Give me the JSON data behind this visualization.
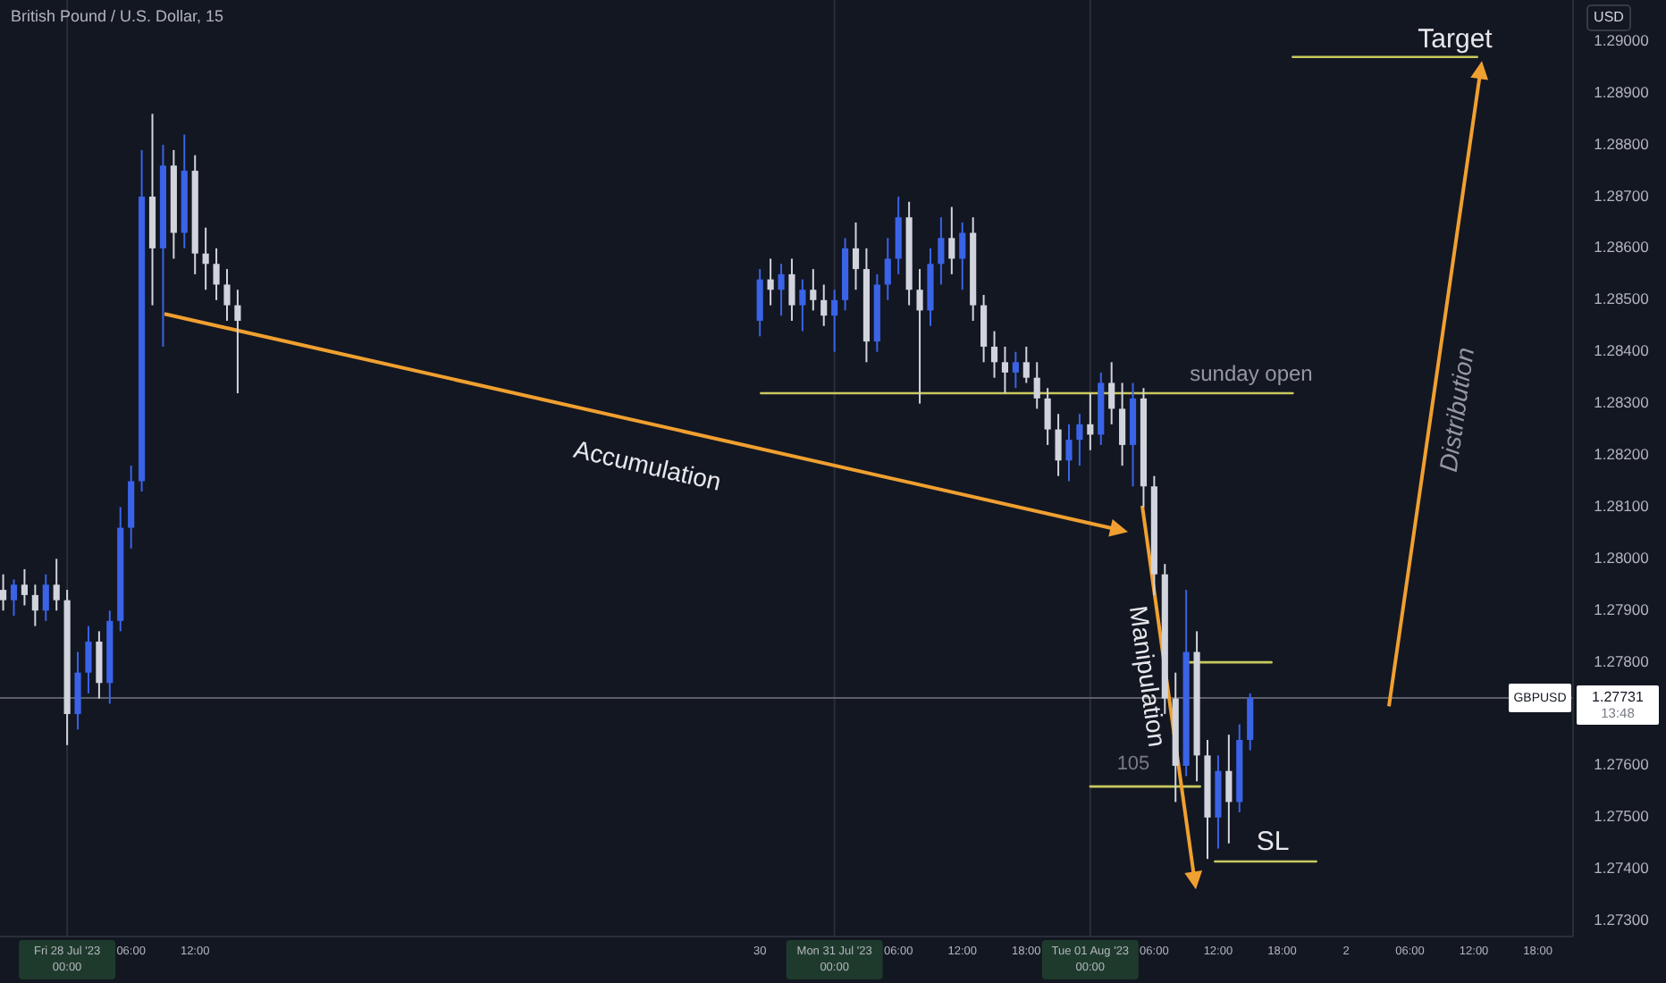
{
  "chart_data": {
    "type": "candlestick",
    "title": "British Pound / U.S. Dollar, 15",
    "x": [
      "2023-07-27T18:00",
      "2023-07-27T19:00",
      "2023-07-27T20:00",
      "2023-07-27T21:00",
      "2023-07-27T22:00",
      "2023-07-27T23:00",
      "2023-07-28T00:00",
      "2023-07-28T01:00",
      "2023-07-28T02:00",
      "2023-07-28T03:00",
      "2023-07-28T04:00",
      "2023-07-28T05:00",
      "2023-07-28T06:00",
      "2023-07-28T07:00",
      "2023-07-28T08:00",
      "2023-07-28T09:00",
      "2023-07-28T10:00",
      "2023-07-28T11:00",
      "2023-07-28T12:00",
      "2023-07-28T13:00",
      "2023-07-28T14:00",
      "2023-07-28T15:00",
      "2023-07-28T16:00",
      "2023-07-30T17:00",
      "2023-07-30T18:00",
      "2023-07-30T19:00",
      "2023-07-30T20:00",
      "2023-07-30T21:00",
      "2023-07-30T22:00",
      "2023-07-30T23:00",
      "2023-07-31T00:00",
      "2023-07-31T01:00",
      "2023-07-31T02:00",
      "2023-07-31T03:00",
      "2023-07-31T04:00",
      "2023-07-31T05:00",
      "2023-07-31T06:00",
      "2023-07-31T07:00",
      "2023-07-31T08:00",
      "2023-07-31T09:00",
      "2023-07-31T10:00",
      "2023-07-31T11:00",
      "2023-07-31T12:00",
      "2023-07-31T13:00",
      "2023-07-31T14:00",
      "2023-07-31T15:00",
      "2023-07-31T16:00",
      "2023-07-31T17:00",
      "2023-07-31T18:00",
      "2023-07-31T19:00",
      "2023-07-31T20:00",
      "2023-07-31T21:00",
      "2023-07-31T22:00",
      "2023-07-31T23:00",
      "2023-08-01T00:00",
      "2023-08-01T01:00",
      "2023-08-01T02:00",
      "2023-08-01T03:00",
      "2023-08-01T04:00",
      "2023-08-01T05:00",
      "2023-08-01T06:00",
      "2023-08-01T07:00",
      "2023-08-01T08:00",
      "2023-08-01T09:00",
      "2023-08-01T10:00",
      "2023-08-01T11:00",
      "2023-08-01T12:00",
      "2023-08-01T13:00",
      "2023-08-01T14:00",
      "2023-08-01T15:00"
    ],
    "ohlc": [
      [
        1.2794,
        1.2797,
        1.279,
        1.2792
      ],
      [
        1.2792,
        1.2796,
        1.2789,
        1.2795
      ],
      [
        1.2795,
        1.2798,
        1.2791,
        1.2793
      ],
      [
        1.2793,
        1.2795,
        1.2787,
        1.279
      ],
      [
        1.279,
        1.2797,
        1.2788,
        1.2795
      ],
      [
        1.2795,
        1.28,
        1.279,
        1.2792
      ],
      [
        1.2792,
        1.2794,
        1.2764,
        1.277
      ],
      [
        1.277,
        1.2782,
        1.2767,
        1.2778
      ],
      [
        1.2778,
        1.2787,
        1.2774,
        1.2784
      ],
      [
        1.2784,
        1.2786,
        1.2773,
        1.2776
      ],
      [
        1.2776,
        1.279,
        1.2772,
        1.2788
      ],
      [
        1.2788,
        1.281,
        1.2786,
        1.2806
      ],
      [
        1.2806,
        1.2818,
        1.2802,
        1.2815
      ],
      [
        1.2815,
        1.2879,
        1.2813,
        1.287
      ],
      [
        1.287,
        1.2886,
        1.2849,
        1.286
      ],
      [
        1.286,
        1.288,
        1.2841,
        1.2876
      ],
      [
        1.2876,
        1.2879,
        1.2858,
        1.2863
      ],
      [
        1.2863,
        1.2882,
        1.286,
        1.2875
      ],
      [
        1.2875,
        1.2878,
        1.2855,
        1.2859
      ],
      [
        1.2859,
        1.2864,
        1.2852,
        1.2857
      ],
      [
        1.2857,
        1.286,
        1.285,
        1.2853
      ],
      [
        1.2853,
        1.2856,
        1.2846,
        1.2849
      ],
      [
        1.2849,
        1.2852,
        1.2832,
        1.2846
      ],
      [
        1.2846,
        1.2856,
        1.2843,
        1.2854
      ],
      [
        1.2854,
        1.2858,
        1.2849,
        1.2852
      ],
      [
        1.2852,
        1.2857,
        1.2847,
        1.2855
      ],
      [
        1.2855,
        1.2858,
        1.2846,
        1.2849
      ],
      [
        1.2849,
        1.2854,
        1.2844,
        1.2852
      ],
      [
        1.2852,
        1.2856,
        1.2848,
        1.285
      ],
      [
        1.285,
        1.2853,
        1.2845,
        1.2847
      ],
      [
        1.2847,
        1.2852,
        1.284,
        1.285
      ],
      [
        1.285,
        1.2862,
        1.2848,
        1.286
      ],
      [
        1.286,
        1.2865,
        1.2852,
        1.2856
      ],
      [
        1.2856,
        1.286,
        1.2838,
        1.2842
      ],
      [
        1.2842,
        1.2855,
        1.284,
        1.2853
      ],
      [
        1.2853,
        1.2862,
        1.285,
        1.2858
      ],
      [
        1.2858,
        1.287,
        1.2855,
        1.2866
      ],
      [
        1.2866,
        1.2869,
        1.2849,
        1.2852
      ],
      [
        1.2852,
        1.2856,
        1.283,
        1.2848
      ],
      [
        1.2848,
        1.286,
        1.2845,
        1.2857
      ],
      [
        1.2857,
        1.2866,
        1.2853,
        1.2862
      ],
      [
        1.2862,
        1.2868,
        1.2855,
        1.2858
      ],
      [
        1.2858,
        1.2865,
        1.2852,
        1.2863
      ],
      [
        1.2863,
        1.2866,
        1.2846,
        1.2849
      ],
      [
        1.2849,
        1.2851,
        1.2838,
        1.2841
      ],
      [
        1.2841,
        1.2844,
        1.2835,
        1.2838
      ],
      [
        1.2838,
        1.2841,
        1.2832,
        1.2836
      ],
      [
        1.2836,
        1.284,
        1.2833,
        1.2838
      ],
      [
        1.2838,
        1.2841,
        1.2834,
        1.2835
      ],
      [
        1.2835,
        1.2838,
        1.2829,
        1.2831
      ],
      [
        1.2831,
        1.2833,
        1.2822,
        1.2825
      ],
      [
        1.2825,
        1.2828,
        1.2816,
        1.2819
      ],
      [
        1.2819,
        1.2826,
        1.2815,
        1.2823
      ],
      [
        1.2823,
        1.2828,
        1.2818,
        1.2826
      ],
      [
        1.2826,
        1.2832,
        1.2821,
        1.2824
      ],
      [
        1.2824,
        1.2836,
        1.2822,
        1.2834
      ],
      [
        1.2834,
        1.2838,
        1.2826,
        1.2829
      ],
      [
        1.2829,
        1.2834,
        1.2818,
        1.2822
      ],
      [
        1.2822,
        1.2834,
        1.2814,
        1.2831
      ],
      [
        1.2831,
        1.2833,
        1.281,
        1.2814
      ],
      [
        1.2814,
        1.2816,
        1.2793,
        1.2797
      ],
      [
        1.2797,
        1.2799,
        1.277,
        1.2773
      ],
      [
        1.2773,
        1.2778,
        1.2753,
        1.276
      ],
      [
        1.276,
        1.2794,
        1.2758,
        1.2782
      ],
      [
        1.2782,
        1.2786,
        1.2757,
        1.2762
      ],
      [
        1.2762,
        1.2765,
        1.2742,
        1.275
      ],
      [
        1.275,
        1.2762,
        1.2744,
        1.2759
      ],
      [
        1.2759,
        1.2766,
        1.2745,
        1.2753
      ],
      [
        1.2753,
        1.2768,
        1.2751,
        1.2765
      ],
      [
        1.2765,
        1.2774,
        1.2763,
        1.27731
      ]
    ],
    "colors": [
      "#d1d4dc",
      "#3a63e8",
      "#d1d4dc",
      "#d1d4dc",
      "#3a63e8",
      "#d1d4dc",
      "#d1d4dc",
      "#3a63e8",
      "#3a63e8",
      "#d1d4dc",
      "#3a63e8",
      "#3a63e8",
      "#3a63e8",
      "#3a63e8",
      "#d1d4dc",
      "#3a63e8",
      "#d1d4dc",
      "#3a63e8",
      "#d1d4dc",
      "#d1d4dc",
      "#d1d4dc",
      "#d1d4dc",
      "#d1d4dc",
      "#3a63e8",
      "#d1d4dc",
      "#3a63e8",
      "#d1d4dc",
      "#3a63e8",
      "#d1d4dc",
      "#d1d4dc",
      "#3a63e8",
      "#3a63e8",
      "#d1d4dc",
      "#d1d4dc",
      "#3a63e8",
      "#3a63e8",
      "#3a63e8",
      "#d1d4dc",
      "#d1d4dc",
      "#3a63e8",
      "#3a63e8",
      "#d1d4dc",
      "#3a63e8",
      "#d1d4dc",
      "#d1d4dc",
      "#d1d4dc",
      "#d1d4dc",
      "#3a63e8",
      "#d1d4dc",
      "#d1d4dc",
      "#d1d4dc",
      "#d1d4dc",
      "#3a63e8",
      "#3a63e8",
      "#d1d4dc",
      "#3a63e8",
      "#d1d4dc",
      "#d1d4dc",
      "#3a63e8",
      "#d1d4dc",
      "#d1d4dc",
      "#d1d4dc",
      "#d1d4dc",
      "#3a63e8",
      "#d1d4dc",
      "#d1d4dc",
      "#3a63e8",
      "#d1d4dc",
      "#3a63e8",
      "#3a63e8"
    ],
    "series": [
      {
        "type": "line",
        "color": "#c9c95e",
        "x": [
          "2023-07-30T17:06",
          "2023-08-01T19:00"
        ],
        "values": [
          1.2832,
          1.2832
        ]
      },
      {
        "type": "line",
        "color": "#c9c95e",
        "x": [
          "2023-08-01T19:00",
          "2023-08-02T12:18"
        ],
        "values": [
          1.2897,
          1.2897
        ]
      },
      {
        "type": "line",
        "color": "#c9c95e",
        "x": [
          "2023-08-01T09:18",
          "2023-08-01T17:00"
        ],
        "values": [
          1.278,
          1.278
        ]
      },
      {
        "type": "line",
        "color": "#c9c95e",
        "x": [
          "2023-08-01T00:00",
          "2023-08-01T10:18"
        ],
        "values": [
          1.2756,
          1.2756
        ]
      },
      {
        "type": "line",
        "color": "#c9c95e",
        "x": [
          "2023-08-01T11:42",
          "2023-08-01T21:12"
        ],
        "values": [
          1.27415,
          1.27415
        ]
      }
    ],
    "annotations": [
      "sunday open",
      "Target",
      "SL",
      "105",
      "Accumulation",
      "Manipulation",
      "Distribution",
      "USD",
      "GBPUSD",
      "13:48"
    ],
    "ref_lines": [
      {
        "axis": "y",
        "value": 1.27731,
        "label": "1.27731",
        "color": "#5d606b"
      },
      {
        "axis": "x",
        "value": "2023-07-28",
        "color": "#2a2e39"
      },
      {
        "axis": "x",
        "value": "2023-07-31",
        "color": "#2a2e39"
      },
      {
        "axis": "x",
        "value": "2023-08-01",
        "color": "#2a2e39"
      }
    ],
    "xlim": [
      "2023-07-27T17:42",
      "2023-08-02T21:18"
    ],
    "xticks": [
      {
        "value": "2023-07-28T00:00",
        "label": "Fri 28 Jul '23   00:00"
      },
      {
        "value": "2023-07-28T06:00",
        "label": "06:00"
      },
      {
        "value": "2023-07-28T12:00",
        "label": "12:00"
      },
      {
        "value": "2023-07-30T17:00",
        "label": "30"
      },
      {
        "value": "2023-07-31T00:00",
        "label": "Mon 31 Jul '23   00:00"
      },
      {
        "value": "2023-07-31T06:00",
        "label": "06:00"
      },
      {
        "value": "2023-07-31T12:00",
        "label": "12:00"
      },
      {
        "value": "2023-07-31T18:00",
        "label": "18:00"
      },
      {
        "value": "2023-08-01T00:00",
        "label": "Tue 01 Aug '23   00:00"
      },
      {
        "value": "2023-08-01T06:00",
        "label": "06:00"
      },
      {
        "value": "2023-08-01T12:00",
        "label": "12:00"
      },
      {
        "value": "2023-08-01T18:00",
        "label": "18:00"
      },
      {
        "value": "2023-08-02",
        "label": "2"
      },
      {
        "value": "2023-08-02T06:00",
        "label": "06:00"
      },
      {
        "value": "2023-08-02T12:00",
        "label": "12:00"
      },
      {
        "value": "2023-08-02T18:00",
        "label": "18:00"
      }
    ],
    "ylim": [
      1.2727,
      1.2908
    ],
    "yticks": [
      {
        "value": 1.273,
        "label": "1.27300"
      },
      {
        "value": 1.274,
        "label": "1.27400"
      },
      {
        "value": 1.275,
        "label": "1.27500"
      },
      {
        "value": 1.276,
        "label": "1.27600"
      },
      {
        "value": 1.278,
        "label": "1.27800"
      },
      {
        "value": 1.279,
        "label": "1.27900"
      },
      {
        "value": 1.28,
        "label": "1.28000"
      },
      {
        "value": 1.281,
        "label": "1.28100"
      },
      {
        "value": 1.282,
        "label": "1.28200"
      },
      {
        "value": 1.283,
        "label": "1.28300"
      },
      {
        "value": 1.284,
        "label": "1.28400"
      },
      {
        "value": 1.285,
        "label": "1.28500"
      },
      {
        "value": 1.286,
        "label": "1.28600"
      },
      {
        "value": 1.287,
        "label": "1.28700"
      },
      {
        "value": 1.288,
        "label": "1.28800"
      },
      {
        "value": 1.289,
        "label": "1.28900"
      },
      {
        "value": 1.29,
        "label": "1.29000"
      }
    ],
    "grid": false
  }
}
